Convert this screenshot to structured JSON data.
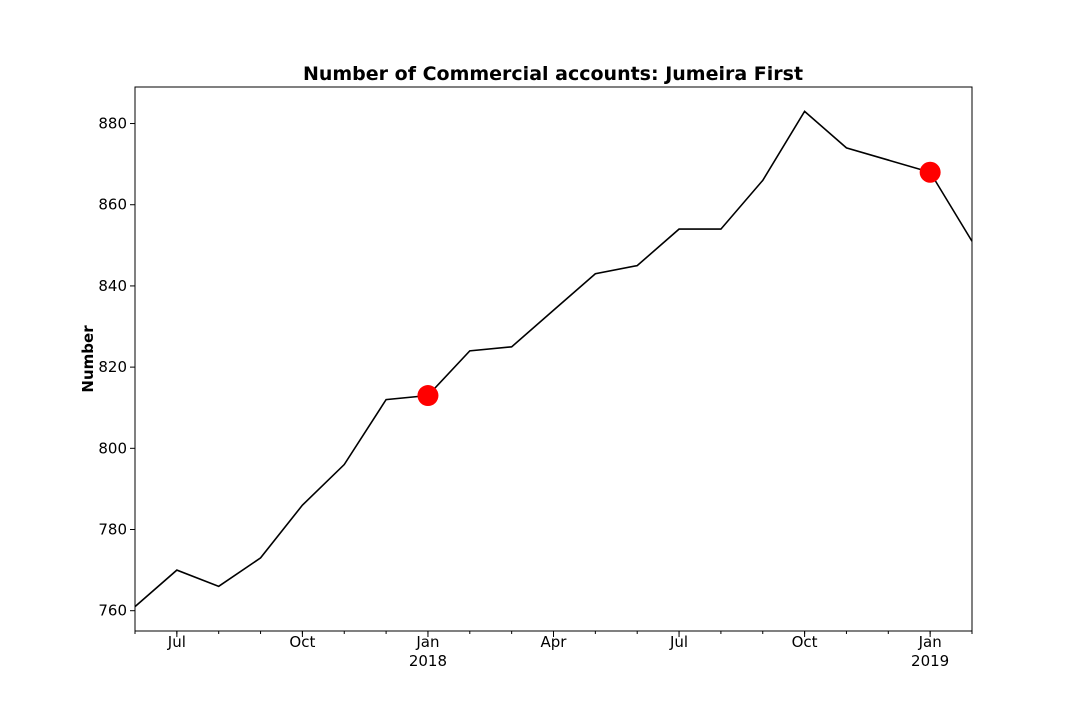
{
  "chart_data": {
    "type": "line",
    "title": "Number of Commercial accounts: Jumeira First",
    "xlabel": "",
    "ylabel": "Number",
    "x": [
      "2017-06",
      "2017-07",
      "2017-08",
      "2017-09",
      "2017-10",
      "2017-11",
      "2017-12",
      "2018-01",
      "2018-02",
      "2018-03",
      "2018-04",
      "2018-05",
      "2018-06",
      "2018-07",
      "2018-08",
      "2018-09",
      "2018-10",
      "2018-11",
      "2018-12",
      "2019-01",
      "2019-02"
    ],
    "xlim": [
      "2017-06",
      "2019-02"
    ],
    "ylim": [
      755,
      889
    ],
    "series": [
      {
        "values": [
          761,
          770,
          766,
          773,
          786,
          796,
          812,
          813,
          824,
          825,
          834,
          843,
          845,
          854,
          854,
          866,
          883,
          874,
          871,
          868,
          851
        ],
        "color": "#000000"
      }
    ],
    "highlighted_points": [
      {
        "x": "2018-01",
        "y": 813,
        "color": "#ff0000"
      },
      {
        "x": "2019-01",
        "y": 868,
        "color": "#ff0000"
      }
    ],
    "y_ticks": [
      760,
      780,
      800,
      820,
      840,
      860,
      880
    ],
    "y_tick_labels": [
      "760",
      "780",
      "800",
      "820",
      "840",
      "860",
      "880"
    ],
    "x_major_ticks": [
      {
        "x": "2017-07",
        "label": "Jul",
        "year": ""
      },
      {
        "x": "2017-10",
        "label": "Oct",
        "year": ""
      },
      {
        "x": "2018-01",
        "label": "Jan",
        "year": "2018"
      },
      {
        "x": "2018-04",
        "label": "Apr",
        "year": ""
      },
      {
        "x": "2018-07",
        "label": "Jul",
        "year": ""
      },
      {
        "x": "2018-10",
        "label": "Oct",
        "year": ""
      },
      {
        "x": "2019-01",
        "label": "Jan",
        "year": "2019"
      }
    ],
    "grid": false,
    "legend": "none"
  }
}
